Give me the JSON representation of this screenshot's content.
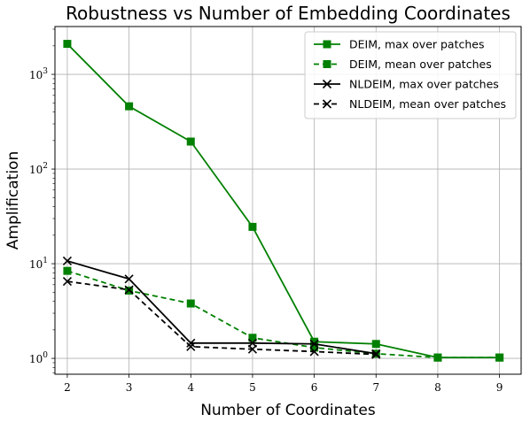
{
  "chart_data": {
    "type": "line",
    "title": "Robustness vs Number of Embedding Coordinates",
    "xlabel": "Number of Coordinates",
    "ylabel": "Amplification",
    "xlim": [
      1.8,
      9.35
    ],
    "ylim": [
      0.68,
      3200
    ],
    "yscale": "log",
    "xticks": [
      2,
      3,
      4,
      5,
      6,
      7,
      8,
      9
    ],
    "yticks": [
      {
        "value": 1,
        "label": "10^0"
      },
      {
        "value": 10,
        "label": "10^1"
      },
      {
        "value": 100,
        "label": "10^2"
      },
      {
        "value": 1000,
        "label": "10^3"
      }
    ],
    "grid": true,
    "legend_position": "top-right",
    "series": [
      {
        "name": "DEIM, max over patches",
        "color": "#008000",
        "linestyle": "solid",
        "marker": "square",
        "x": [
          2,
          3,
          4,
          5,
          6,
          7,
          8,
          9
        ],
        "y": [
          2100,
          460,
          195,
          24.5,
          1.5,
          1.42,
          1.02,
          1.02
        ]
      },
      {
        "name": "DEIM, mean over patches",
        "color": "#008000",
        "linestyle": "dashed",
        "marker": "square",
        "x": [
          2,
          3,
          4,
          5,
          6,
          7,
          8,
          9
        ],
        "y": [
          8.4,
          5.2,
          3.8,
          1.65,
          1.3,
          1.12,
          1.02,
          1.02
        ]
      },
      {
        "name": "NLDEIM, max over patches",
        "color": "#000000",
        "linestyle": "solid",
        "marker": "x",
        "x": [
          2,
          3,
          4,
          5,
          6,
          7
        ],
        "y": [
          10.7,
          6.9,
          1.45,
          1.45,
          1.42,
          1.12
        ]
      },
      {
        "name": "NLDEIM, mean over patches",
        "color": "#000000",
        "linestyle": "dashed",
        "marker": "x",
        "x": [
          2,
          3,
          4,
          5,
          6,
          7
        ],
        "y": [
          6.5,
          5.3,
          1.33,
          1.25,
          1.18,
          1.1
        ]
      }
    ]
  }
}
